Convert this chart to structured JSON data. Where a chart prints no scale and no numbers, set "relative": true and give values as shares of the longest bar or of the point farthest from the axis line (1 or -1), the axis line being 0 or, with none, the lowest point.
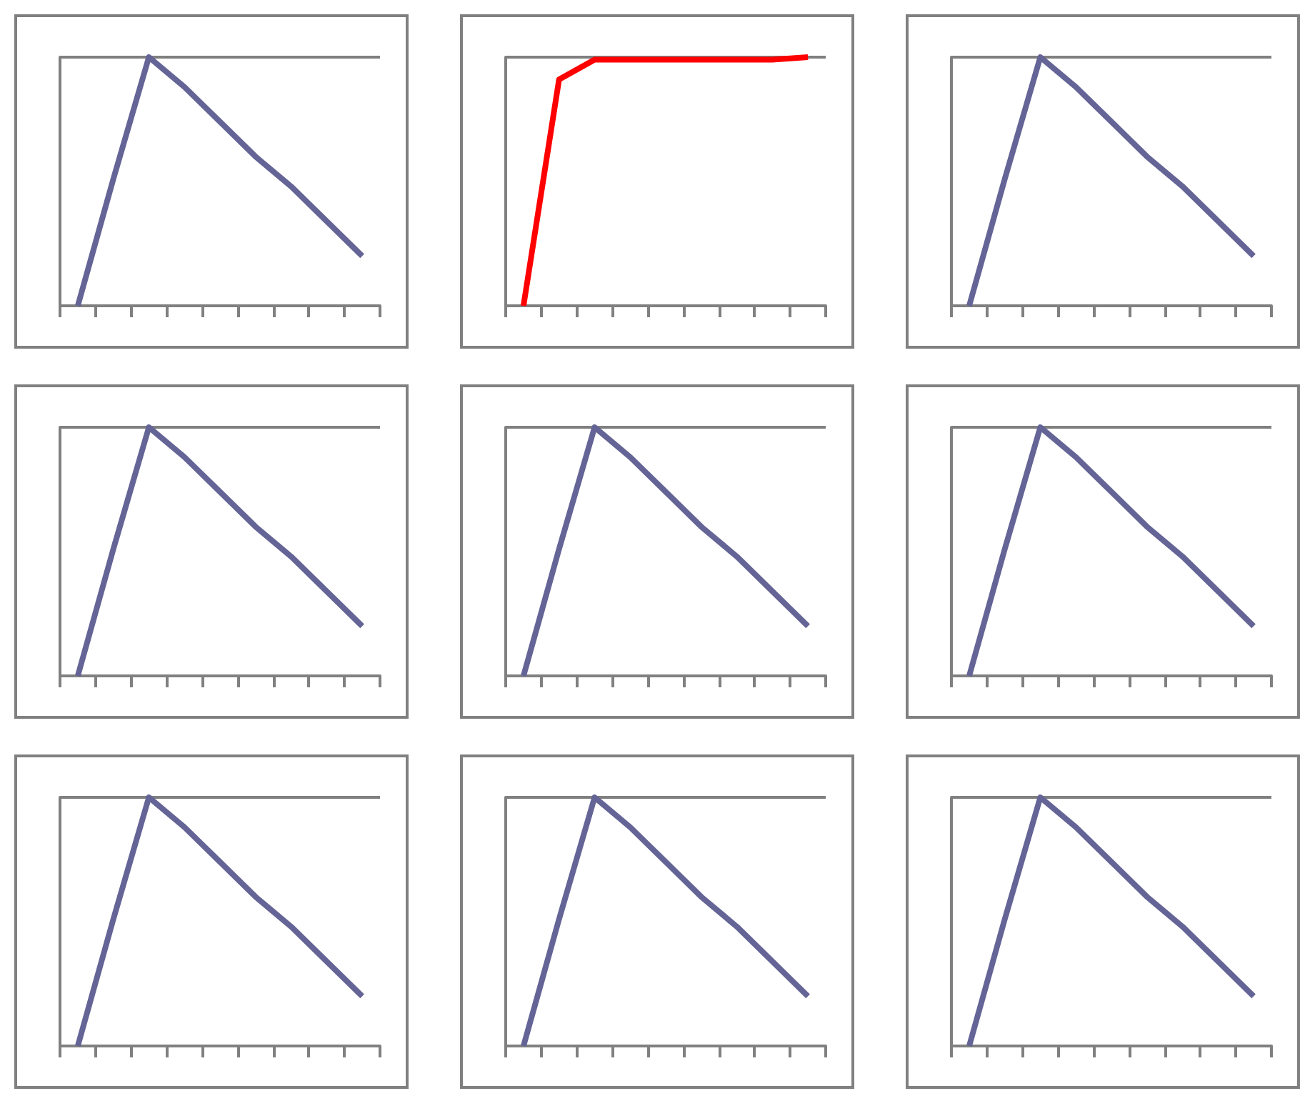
{
  "chart_data": [
    {
      "type": "line",
      "relative": true,
      "categories": [
        null,
        null,
        null,
        null,
        null,
        null,
        null,
        null,
        null
      ],
      "grid": "y",
      "marker": "none",
      "series": [
        {
          "color": "#646496",
          "values": [
            0,
            0.51,
            1,
            0.88,
            0.74,
            0.6,
            0.48,
            0.34,
            0.2
          ]
        }
      ]
    },
    {
      "type": "line",
      "relative": true,
      "categories": [
        null,
        null,
        null,
        null,
        null,
        null,
        null,
        null,
        null
      ],
      "grid": "y",
      "marker": "none",
      "series": [
        {
          "color": "#ff0000",
          "values": [
            0,
            0.91,
            0.99,
            0.99,
            0.99,
            0.99,
            0.99,
            0.99,
            1
          ]
        }
      ]
    },
    {
      "type": "line",
      "relative": true,
      "categories": [
        null,
        null,
        null,
        null,
        null,
        null,
        null,
        null,
        null
      ],
      "grid": "y",
      "marker": "none",
      "series": [
        {
          "color": "#646496",
          "values": [
            0,
            0.51,
            1,
            0.88,
            0.74,
            0.6,
            0.48,
            0.34,
            0.2
          ]
        }
      ]
    },
    {
      "type": "line",
      "relative": true,
      "categories": [
        null,
        null,
        null,
        null,
        null,
        null,
        null,
        null,
        null
      ],
      "grid": "y",
      "marker": "none",
      "series": [
        {
          "color": "#646496",
          "values": [
            0,
            0.51,
            1,
            0.88,
            0.74,
            0.6,
            0.48,
            0.34,
            0.2
          ]
        }
      ]
    },
    {
      "type": "line",
      "relative": true,
      "categories": [
        null,
        null,
        null,
        null,
        null,
        null,
        null,
        null,
        null
      ],
      "grid": "y",
      "marker": "none",
      "series": [
        {
          "color": "#646496",
          "values": [
            0,
            0.51,
            1,
            0.88,
            0.74,
            0.6,
            0.48,
            0.34,
            0.2
          ]
        }
      ]
    },
    {
      "type": "line",
      "relative": true,
      "categories": [
        null,
        null,
        null,
        null,
        null,
        null,
        null,
        null,
        null
      ],
      "grid": "y",
      "marker": "none",
      "series": [
        {
          "color": "#646496",
          "values": [
            0,
            0.51,
            1,
            0.88,
            0.74,
            0.6,
            0.48,
            0.34,
            0.2
          ]
        }
      ]
    },
    {
      "type": "line",
      "relative": true,
      "categories": [
        null,
        null,
        null,
        null,
        null,
        null,
        null,
        null,
        null
      ],
      "grid": "y",
      "marker": "none",
      "series": [
        {
          "color": "#646496",
          "values": [
            0,
            0.51,
            1,
            0.88,
            0.74,
            0.6,
            0.48,
            0.34,
            0.2
          ]
        }
      ]
    },
    {
      "type": "line",
      "relative": true,
      "categories": [
        null,
        null,
        null,
        null,
        null,
        null,
        null,
        null,
        null
      ],
      "grid": "y",
      "marker": "none",
      "series": [
        {
          "color": "#646496",
          "values": [
            0,
            0.51,
            1,
            0.88,
            0.74,
            0.6,
            0.48,
            0.34,
            0.2
          ]
        }
      ]
    },
    {
      "type": "line",
      "relative": true,
      "categories": [
        null,
        null,
        null,
        null,
        null,
        null,
        null,
        null,
        null
      ],
      "grid": "y",
      "marker": "none",
      "series": [
        {
          "color": "#646496",
          "values": [
            0,
            0.51,
            1,
            0.88,
            0.74,
            0.6,
            0.48,
            0.34,
            0.2
          ]
        }
      ]
    }
  ]
}
